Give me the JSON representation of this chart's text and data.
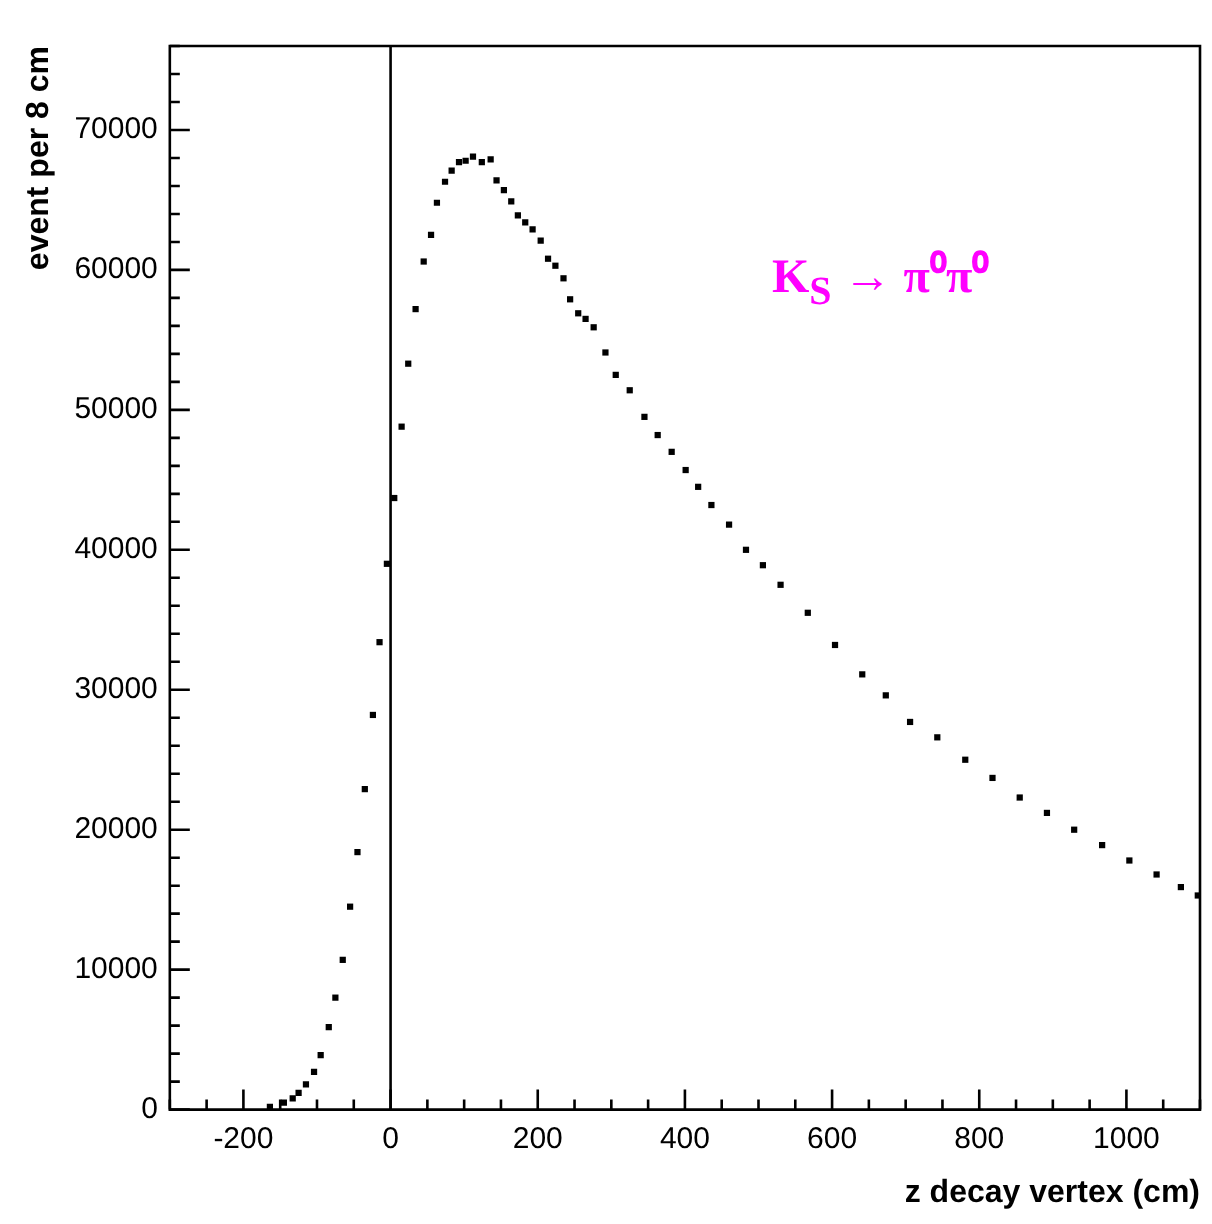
{
  "chart_data": {
    "type": "scatter",
    "xlabel": "z decay vertex (cm)",
    "ylabel": "event per 8 cm",
    "annotations": [
      "K$_{S}$ → π⁰π⁰"
    ],
    "xlim": [
      -300,
      1100
    ],
    "xticks": [
      {
        "value": -300,
        "label": null
      },
      {
        "value": -250,
        "label": null
      },
      -200,
      {
        "value": -150,
        "label": null
      },
      {
        "value": -100,
        "label": null
      },
      {
        "value": -50,
        "label": null
      },
      0,
      {
        "value": 50,
        "label": null
      },
      {
        "value": 100,
        "label": null
      },
      {
        "value": 150,
        "label": null
      },
      200,
      {
        "value": 250,
        "label": null
      },
      {
        "value": 300,
        "label": null
      },
      {
        "value": 350,
        "label": null
      },
      400,
      {
        "value": 450,
        "label": null
      },
      {
        "value": 500,
        "label": null
      },
      {
        "value": 550,
        "label": null
      },
      600,
      {
        "value": 650,
        "label": null
      },
      {
        "value": 700,
        "label": null
      },
      {
        "value": 750,
        "label": null
      },
      800,
      {
        "value": 850,
        "label": null
      },
      {
        "value": 900,
        "label": null
      },
      {
        "value": 950,
        "label": null
      },
      1000,
      {
        "value": 1050,
        "label": null
      },
      {
        "value": 1100,
        "label": null
      }
    ],
    "ylim": [
      0,
      76000
    ],
    "yticks": [
      0,
      {
        "value": 2000,
        "label": null
      },
      {
        "value": 4000,
        "label": null
      },
      {
        "value": 6000,
        "label": null
      },
      {
        "value": 8000,
        "label": null
      },
      10000,
      {
        "value": 12000,
        "label": null
      },
      {
        "value": 14000,
        "label": null
      },
      {
        "value": 16000,
        "label": null
      },
      {
        "value": 18000,
        "label": null
      },
      20000,
      {
        "value": 22000,
        "label": null
      },
      {
        "value": 24000,
        "label": null
      },
      {
        "value": 26000,
        "label": null
      },
      {
        "value": 28000,
        "label": null
      },
      30000,
      {
        "value": 32000,
        "label": null
      },
      {
        "value": 34000,
        "label": null
      },
      {
        "value": 36000,
        "label": null
      },
      {
        "value": 38000,
        "label": null
      },
      40000,
      {
        "value": 42000,
        "label": null
      },
      {
        "value": 44000,
        "label": null
      },
      {
        "value": 46000,
        "label": null
      },
      {
        "value": 48000,
        "label": null
      },
      50000,
      {
        "value": 52000,
        "label": null
      },
      {
        "value": 54000,
        "label": null
      },
      {
        "value": 56000,
        "label": null
      },
      {
        "value": 58000,
        "label": null
      },
      60000,
      {
        "value": 62000,
        "label": null
      },
      {
        "value": 64000,
        "label": null
      },
      {
        "value": 66000,
        "label": null
      },
      {
        "value": 68000,
        "label": null
      },
      70000,
      {
        "value": 72000,
        "label": null
      },
      {
        "value": 74000,
        "label": null
      },
      {
        "value": 76000,
        "label": null
      }
    ],
    "grid": false,
    "legend": false,
    "marker": "square",
    "ref_lines": [
      {
        "axis": "x",
        "value": 0,
        "color": "#000000"
      }
    ],
    "series": [
      {
        "color": "#000000",
        "x": [
          -164,
          -145,
          -133,
          -125,
          -115,
          -104,
          -95,
          -84,
          -75,
          -65,
          -55,
          -45,
          -35,
          -24,
          -15,
          -5,
          5,
          15,
          24,
          34,
          45,
          55,
          63,
          74,
          83,
          93,
          102,
          112,
          124,
          136,
          144,
          154,
          164,
          173,
          183,
          193,
          204,
          214,
          224,
          235,
          244,
          255,
          265,
          276,
          292,
          306,
          325,
          345,
          363,
          382,
          401,
          418,
          436,
          460,
          483,
          506,
          530,
          567,
          604,
          641,
          673,
          706,
          743,
          781,
          818,
          855,
          892,
          929,
          967,
          1004,
          1041,
          1074,
          1097
        ],
        "values": [
          200,
          500,
          800,
          1200,
          1800,
          2700,
          3900,
          5900,
          8000,
          10700,
          14500,
          18400,
          22900,
          28200,
          33400,
          39000,
          43700,
          48800,
          53300,
          57200,
          60600,
          62500,
          64800,
          66300,
          67100,
          67700,
          67800,
          68100,
          67700,
          67900,
          66400,
          65700,
          64900,
          63900,
          63400,
          62900,
          62100,
          60800,
          60300,
          59400,
          57900,
          56900,
          56500,
          55900,
          54100,
          52500,
          51400,
          49500,
          48200,
          47000,
          45700,
          44500,
          43200,
          41800,
          40000,
          38900,
          37500,
          35500,
          33200,
          31100,
          29600,
          27700,
          26600,
          25000,
          23700,
          22300,
          21200,
          20000,
          18900,
          17800,
          16800,
          15900,
          15300
        ]
      }
    ]
  }
}
